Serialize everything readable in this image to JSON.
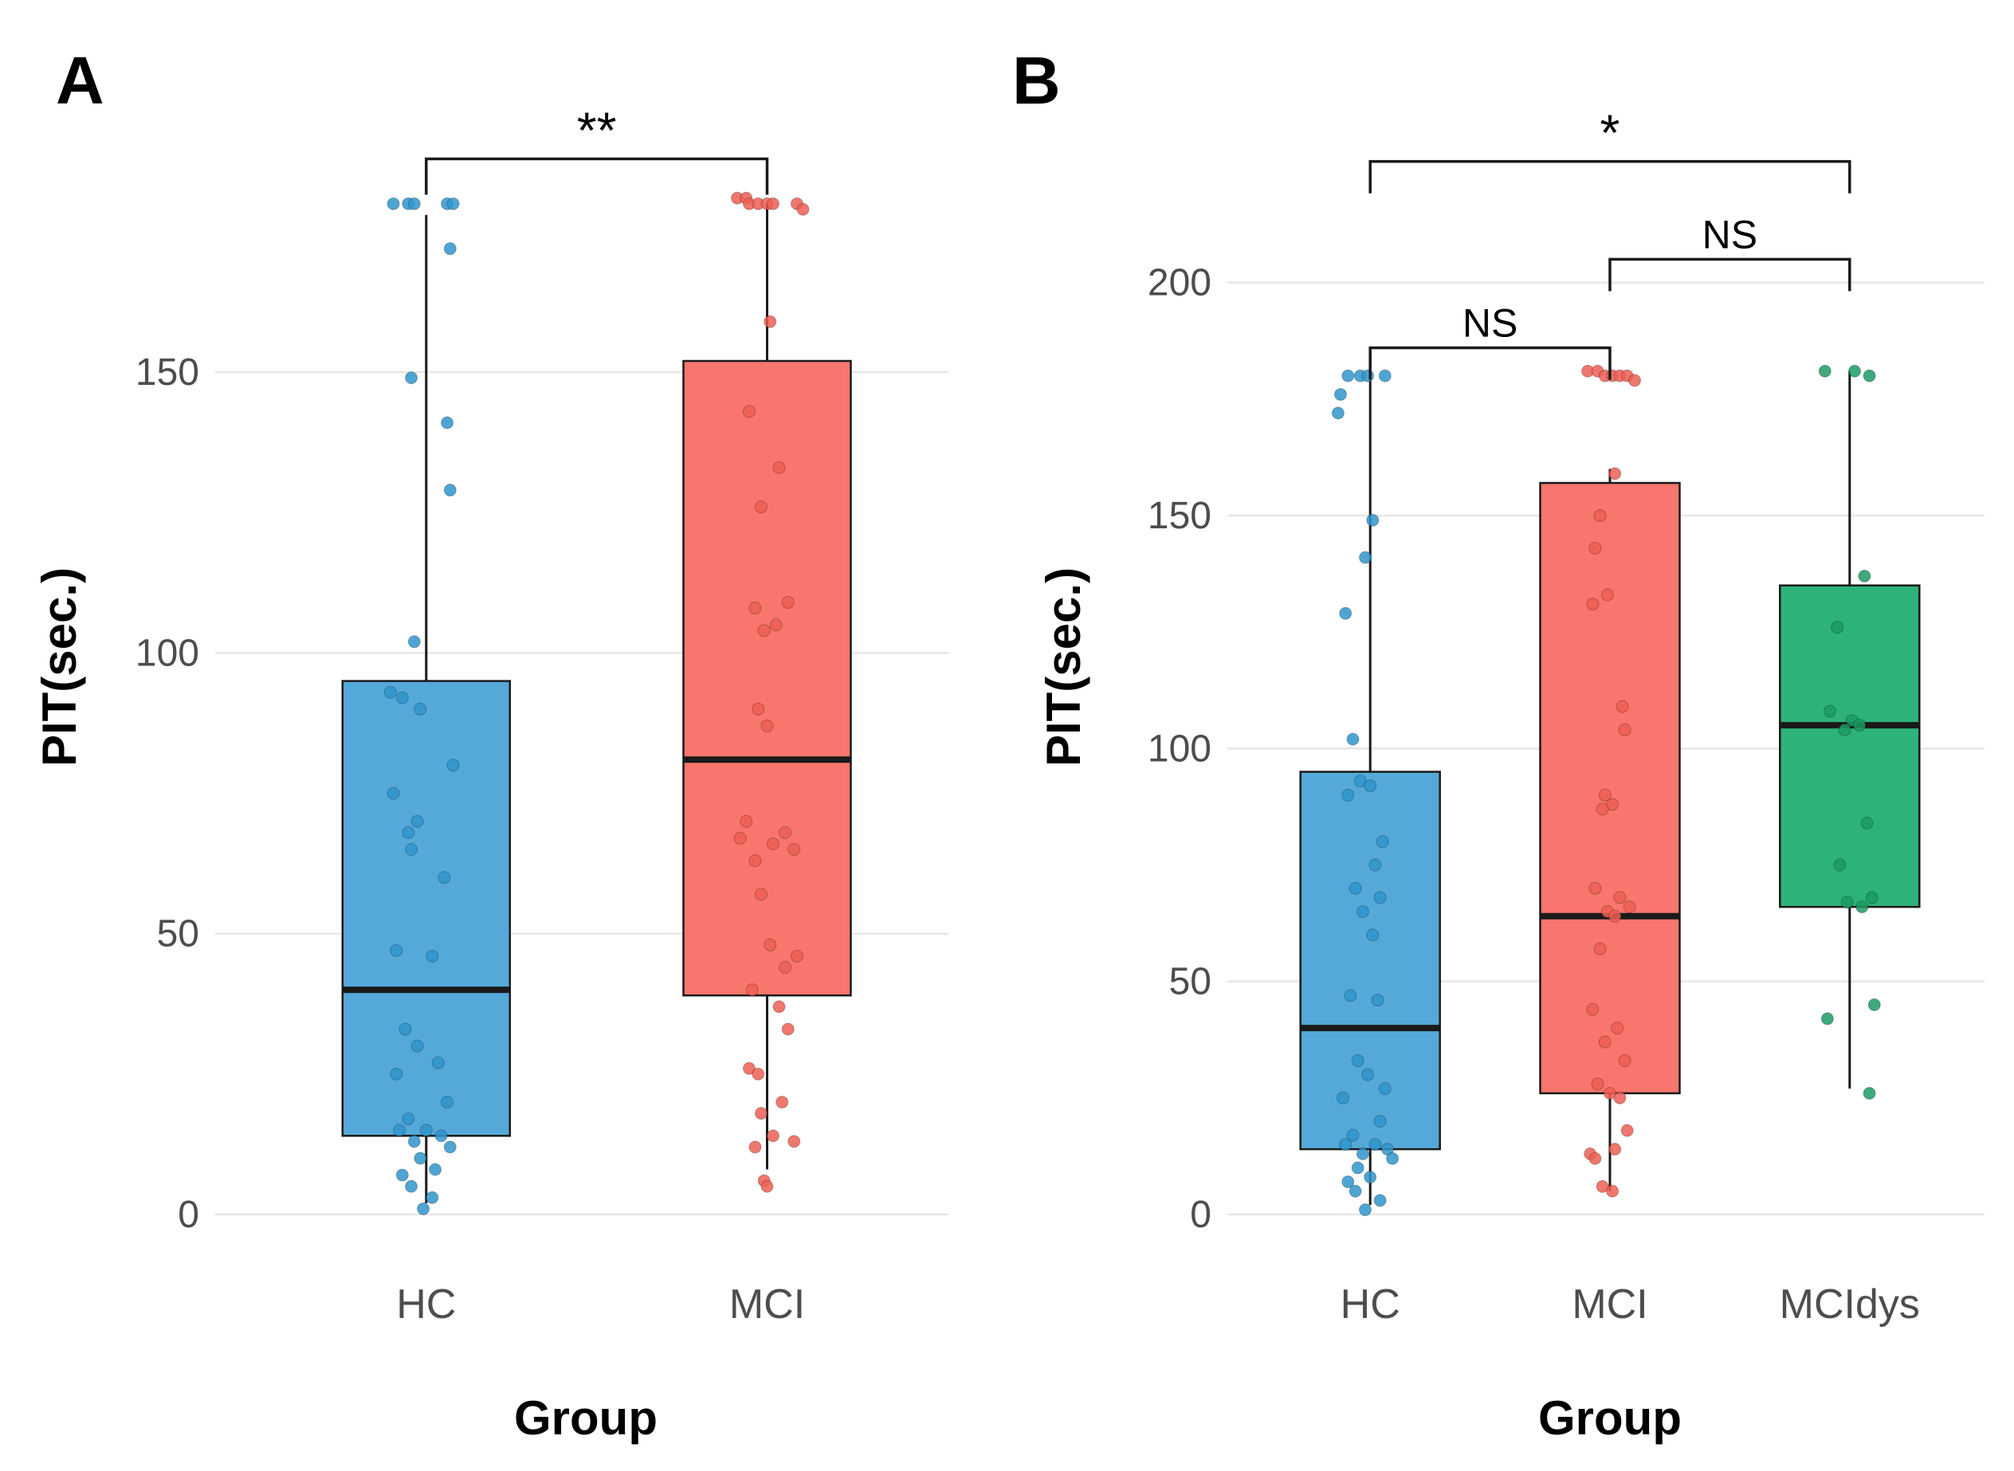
{
  "figure": {
    "background": "#ffffff",
    "panel_labels": [
      "A",
      "B"
    ]
  },
  "chart_data": [
    {
      "type": "boxplot",
      "panel_label": "A",
      "title": "",
      "xlabel": "Group",
      "ylabel": "PIT(sec.)",
      "ylim": [
        0,
        195
      ],
      "yticks": [
        0,
        50,
        100,
        150
      ],
      "grid": true,
      "legend": "none",
      "categories": [
        "HC",
        "MCI"
      ],
      "box_colors": [
        "#55A9D9",
        "#F8766D"
      ],
      "point_colors": [
        "#2F95CB",
        "#ED5F54"
      ],
      "boxes": [
        {
          "group": "HC",
          "whisker_low": 2,
          "q1": 14,
          "median": 40,
          "q3": 95,
          "whisker_high": 178
        },
        {
          "group": "MCI",
          "whisker_low": 8,
          "q1": 39,
          "median": 81,
          "q3": 152,
          "whisker_high": 180
        }
      ],
      "points": [
        [
          [
            -0.55,
            180
          ],
          [
            -0.3,
            180
          ],
          [
            -0.2,
            180
          ],
          [
            0.35,
            180
          ],
          [
            0.45,
            180
          ],
          [
            0.4,
            172
          ],
          [
            -0.25,
            149
          ],
          [
            0.35,
            141
          ],
          [
            0.4,
            129
          ],
          [
            -0.2,
            102
          ],
          [
            -0.6,
            93
          ],
          [
            -0.4,
            92
          ],
          [
            -0.1,
            90
          ],
          [
            0.45,
            80
          ],
          [
            -0.55,
            75
          ],
          [
            -0.15,
            70
          ],
          [
            -0.3,
            68
          ],
          [
            -0.25,
            65
          ],
          [
            0.3,
            60
          ],
          [
            -0.5,
            47
          ],
          [
            0.1,
            46
          ],
          [
            -0.35,
            33
          ],
          [
            -0.15,
            30
          ],
          [
            0.2,
            27
          ],
          [
            -0.5,
            25
          ],
          [
            0.35,
            20
          ],
          [
            -0.3,
            17
          ],
          [
            -0.45,
            15
          ],
          [
            0,
            15
          ],
          [
            0.25,
            14
          ],
          [
            -0.2,
            13
          ],
          [
            0.4,
            12
          ],
          [
            -0.1,
            10
          ],
          [
            0.15,
            8
          ],
          [
            -0.4,
            7
          ],
          [
            -0.25,
            5
          ],
          [
            0.1,
            3
          ],
          [
            -0.05,
            1
          ]
        ],
        [
          [
            -0.5,
            181
          ],
          [
            -0.35,
            181
          ],
          [
            -0.3,
            180
          ],
          [
            -0.15,
            180
          ],
          [
            0,
            180
          ],
          [
            0.1,
            180
          ],
          [
            0.5,
            180
          ],
          [
            0.6,
            179
          ],
          [
            0.05,
            159
          ],
          [
            -0.3,
            143
          ],
          [
            0.2,
            133
          ],
          [
            -0.1,
            126
          ],
          [
            0.35,
            109
          ],
          [
            -0.2,
            108
          ],
          [
            0.15,
            105
          ],
          [
            -0.05,
            104
          ],
          [
            -0.15,
            90
          ],
          [
            0,
            87
          ],
          [
            -0.35,
            70
          ],
          [
            0.3,
            68
          ],
          [
            -0.45,
            67
          ],
          [
            0.1,
            66
          ],
          [
            0.45,
            65
          ],
          [
            -0.2,
            63
          ],
          [
            -0.1,
            57
          ],
          [
            0.05,
            48
          ],
          [
            0.5,
            46
          ],
          [
            0.3,
            44
          ],
          [
            -0.25,
            40
          ],
          [
            0.2,
            37
          ],
          [
            0.35,
            33
          ],
          [
            -0.3,
            26
          ],
          [
            -0.15,
            25
          ],
          [
            0.25,
            20
          ],
          [
            -0.1,
            18
          ],
          [
            0.1,
            14
          ],
          [
            0.45,
            13
          ],
          [
            -0.2,
            12
          ],
          [
            -0.05,
            6
          ],
          [
            0,
            5
          ]
        ]
      ],
      "brackets": [
        {
          "from": 0,
          "to": 1,
          "label": "**",
          "y": 188
        }
      ]
    },
    {
      "type": "boxplot",
      "panel_label": "B",
      "title": "",
      "xlabel": "Group",
      "ylabel": "PIT(sec.)",
      "ylim": [
        0,
        235
      ],
      "yticks": [
        0,
        50,
        100,
        150,
        200
      ],
      "grid": true,
      "legend": "none",
      "categories": [
        "HC",
        "MCI",
        "MCIdys"
      ],
      "box_colors": [
        "#55A9D9",
        "#F8766D",
        "#2DB37A"
      ],
      "point_colors": [
        "#2F95CB",
        "#ED5F54",
        "#1C9A64"
      ],
      "boxes": [
        {
          "group": "HC",
          "whisker_low": 2,
          "q1": 14,
          "median": 40,
          "q3": 95,
          "whisker_high": 180
        },
        {
          "group": "MCI",
          "whisker_low": 5,
          "q1": 26,
          "median": 64,
          "q3": 157,
          "whisker_high": 160
        },
        {
          "group": "MCIdys",
          "whisker_low": 27,
          "q1": 66,
          "median": 105,
          "q3": 135,
          "whisker_high": 181
        }
      ],
      "points": [
        [
          [
            -0.45,
            180
          ],
          [
            -0.2,
            180
          ],
          [
            -0.05,
            180
          ],
          [
            0.3,
            180
          ],
          [
            -0.6,
            176
          ],
          [
            -0.65,
            172
          ],
          [
            0.05,
            149
          ],
          [
            -0.1,
            141
          ],
          [
            -0.5,
            129
          ],
          [
            -0.35,
            102
          ],
          [
            -0.2,
            93
          ],
          [
            0,
            92
          ],
          [
            -0.45,
            90
          ],
          [
            0.25,
            80
          ],
          [
            0.1,
            75
          ],
          [
            -0.3,
            70
          ],
          [
            0.2,
            68
          ],
          [
            -0.15,
            65
          ],
          [
            0.05,
            60
          ],
          [
            -0.4,
            47
          ],
          [
            0.15,
            46
          ],
          [
            -0.25,
            33
          ],
          [
            -0.05,
            30
          ],
          [
            0.3,
            27
          ],
          [
            -0.55,
            25
          ],
          [
            0.2,
            20
          ],
          [
            -0.35,
            17
          ],
          [
            -0.5,
            15
          ],
          [
            0.1,
            15
          ],
          [
            0.35,
            14
          ],
          [
            -0.15,
            13
          ],
          [
            0.45,
            12
          ],
          [
            -0.25,
            10
          ],
          [
            0,
            8
          ],
          [
            -0.45,
            7
          ],
          [
            -0.3,
            5
          ],
          [
            0.2,
            3
          ],
          [
            -0.1,
            1
          ]
        ],
        [
          [
            -0.45,
            181
          ],
          [
            -0.25,
            181
          ],
          [
            -0.1,
            180
          ],
          [
            0.05,
            180
          ],
          [
            0.2,
            180
          ],
          [
            0.35,
            180
          ],
          [
            0.5,
            179
          ],
          [
            0.1,
            159
          ],
          [
            -0.2,
            150
          ],
          [
            -0.3,
            143
          ],
          [
            -0.05,
            133
          ],
          [
            -0.35,
            131
          ],
          [
            0.25,
            109
          ],
          [
            0.3,
            104
          ],
          [
            -0.1,
            90
          ],
          [
            0.05,
            88
          ],
          [
            -0.15,
            87
          ],
          [
            -0.3,
            70
          ],
          [
            0.2,
            68
          ],
          [
            0.4,
            66
          ],
          [
            -0.05,
            65
          ],
          [
            0.1,
            64
          ],
          [
            -0.2,
            57
          ],
          [
            -0.35,
            44
          ],
          [
            0.15,
            40
          ],
          [
            -0.1,
            37
          ],
          [
            0.3,
            33
          ],
          [
            -0.25,
            28
          ],
          [
            0,
            26
          ],
          [
            0.2,
            25
          ],
          [
            0.35,
            18
          ],
          [
            -0.4,
            13
          ],
          [
            -0.3,
            12
          ],
          [
            0.1,
            14
          ],
          [
            -0.15,
            6
          ],
          [
            0.05,
            5
          ]
        ],
        [
          [
            -0.5,
            181
          ],
          [
            0.1,
            181
          ],
          [
            0.4,
            180
          ],
          [
            0.3,
            137
          ],
          [
            -0.25,
            126
          ],
          [
            -0.4,
            108
          ],
          [
            0.05,
            106
          ],
          [
            0.2,
            105
          ],
          [
            -0.1,
            104
          ],
          [
            0.35,
            84
          ],
          [
            -0.2,
            75
          ],
          [
            0.45,
            68
          ],
          [
            -0.05,
            67
          ],
          [
            0.25,
            66
          ],
          [
            0.5,
            45
          ],
          [
            -0.45,
            42
          ],
          [
            0.4,
            26
          ]
        ]
      ],
      "brackets": [
        {
          "from": 0,
          "to": 1,
          "label": "NS",
          "y": 186
        },
        {
          "from": 1,
          "to": 2,
          "label": "NS",
          "y": 205
        },
        {
          "from": 0,
          "to": 2,
          "label": "*",
          "y": 226
        }
      ]
    }
  ]
}
